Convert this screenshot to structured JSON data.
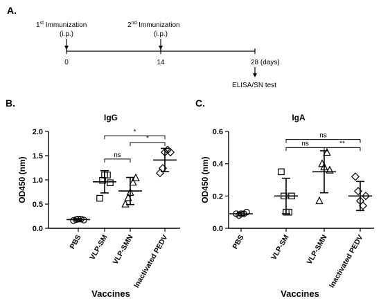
{
  "timeline": {
    "panel_label": "A.",
    "events": [
      {
        "name": "1",
        "sup": "st",
        "name_rest": " Immunization",
        "route": "(i.p.)",
        "time": "0"
      },
      {
        "name": "2",
        "sup": "nd",
        "name_rest": " Immunization",
        "route": "(i.p.)",
        "time": "14"
      }
    ],
    "end_time": "28 (days)",
    "end_event": "ELISA/SN test"
  },
  "chart_data": [
    {
      "type": "scatter",
      "panel_label": "B.",
      "title": "IgG",
      "xlabel": "Vaccines",
      "ylabel": "OD450 (nm)",
      "ylim": [
        0,
        2.0
      ],
      "yticks": [
        "0.0",
        "0.5",
        "1.0",
        "1.5",
        "2.0"
      ],
      "categories": [
        "PBS",
        "VLP-SM",
        "VLP-SMN",
        "Inactivated PEDV"
      ],
      "groups": [
        {
          "category": "PBS",
          "marker": "circle",
          "mean": 0.18,
          "sd": 0.02,
          "points": [
            0.16,
            0.18,
            0.19,
            0.19,
            0.17
          ]
        },
        {
          "category": "VLP-SM",
          "marker": "square",
          "mean": 0.96,
          "sd": 0.23,
          "points": [
            0.62,
            0.99,
            1.1,
            1.1,
            0.94
          ]
        },
        {
          "category": "VLP-SMN",
          "marker": "triangle",
          "mean": 0.77,
          "sd": 0.28,
          "points": [
            0.5,
            0.63,
            0.74,
            0.95,
            1.04
          ]
        },
        {
          "category": "Inactivated PEDV",
          "marker": "diamond",
          "mean": 1.41,
          "sd": 0.24,
          "points": [
            1.14,
            1.24,
            1.57,
            1.62,
            1.57
          ]
        }
      ],
      "significance": [
        {
          "from": 1,
          "to": 2,
          "label": "ns",
          "level": 1.43
        },
        {
          "from": 2,
          "to": 3,
          "label": "*",
          "level": 1.77
        },
        {
          "from": 1,
          "to": 3,
          "label": "*",
          "level": 1.91
        }
      ]
    },
    {
      "type": "scatter",
      "panel_label": "C.",
      "title": "IgA",
      "xlabel": "Vaccines",
      "ylabel": "OD450 (nm)",
      "ylim": [
        0,
        0.6
      ],
      "yticks": [
        "0.0",
        "0.2",
        "0.4",
        "0.6"
      ],
      "categories": [
        "PBS",
        "VLP-SM",
        "VLP-SMN",
        "Inactivated PEDV"
      ],
      "groups": [
        {
          "category": "PBS",
          "marker": "circle",
          "mean": 0.09,
          "sd": 0.01,
          "points": [
            0.09,
            0.08,
            0.09,
            0.09,
            0.1
          ]
        },
        {
          "category": "VLP-SM",
          "marker": "square",
          "mean": 0.2,
          "sd": 0.11,
          "points": [
            0.35,
            0.2,
            0.1,
            0.1,
            0.2
          ]
        },
        {
          "category": "VLP-SMN",
          "marker": "triangle",
          "mean": 0.35,
          "sd": 0.13,
          "points": [
            0.17,
            0.4,
            0.38,
            0.47,
            0.36
          ]
        },
        {
          "category": "Inactivated PEDV",
          "marker": "diamond",
          "mean": 0.2,
          "sd": 0.09,
          "points": [
            0.32,
            0.23,
            0.17,
            0.14,
            0.2
          ]
        }
      ],
      "significance": [
        {
          "from": 1,
          "to": 2,
          "label": "ns",
          "level": 0.5
        },
        {
          "from": 2,
          "to": 3,
          "label": "**",
          "level": 0.5
        },
        {
          "from": 1,
          "to": 3,
          "label": "ns",
          "level": 0.55
        }
      ]
    }
  ]
}
